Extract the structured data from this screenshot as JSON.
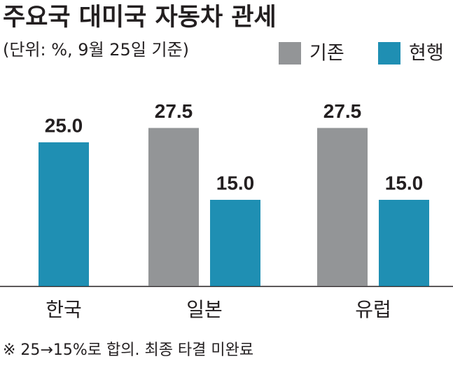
{
  "chart_data": {
    "type": "bar",
    "title": "주요국 대미국 자동차 관세",
    "subtitle": "(단위: %, 9월 25일 기준)",
    "categories": [
      "한국",
      "일본",
      "유럽"
    ],
    "series": [
      {
        "name": "기존",
        "color": "#939597",
        "values": [
          null,
          27.5,
          27.5
        ],
        "value_labels": [
          null,
          "27.5",
          "27.5"
        ]
      },
      {
        "name": "현행",
        "color": "#1f8fb3",
        "values": [
          25.0,
          15.0,
          15.0
        ],
        "value_labels": [
          "25.0",
          "15.0",
          "15.0"
        ]
      }
    ],
    "footnote": "※ 25→15%로 합의. 최종 타결 미완료"
  }
}
